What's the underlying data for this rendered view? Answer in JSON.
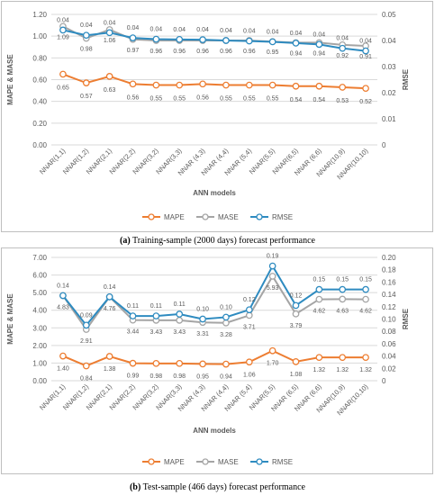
{
  "colors": {
    "mape": "#ED7D31",
    "mase": "#A5A5A5",
    "rmse": "#2E8BC0",
    "grid": "#d9d9d9",
    "text": "#595959"
  },
  "chart_data": [
    {
      "type": "line",
      "panel_label": "(a)",
      "caption": "Training-sample (2000 days) forecast performance",
      "categories": [
        "NNAR(1,1)",
        "NNAR(1,2)",
        "NNAR(2,1)",
        "NNAR(2,2)",
        "NNAR(3,2)",
        "NNAR(3,3)",
        "NNAR (4,3)",
        "NNAR (4,4)",
        "NNAR (5,4)",
        "NNAR(5,5)",
        "NNAR(6,5)",
        "NNAR (6,6)",
        "NNAR(10,9)",
        "NNAR(10,10)"
      ],
      "xlabel": "ANN models",
      "ylabel_left": "MAPE & MASE",
      "ylabel_right": "RMSE",
      "ylim_left": [
        0,
        1.2
      ],
      "yticks_left": [
        "0.00",
        "0.20",
        "0.40",
        "0.60",
        "0.80",
        "1.00",
        "1.20"
      ],
      "ylim_right": [
        0,
        0.05
      ],
      "yticks_right": [
        "0",
        "0.01",
        "0.02",
        "0.03",
        "0.04",
        "0.05"
      ],
      "grid": true,
      "legend_position": "bottom",
      "series": [
        {
          "name": "MAPE",
          "axis": "left",
          "values": [
            0.65,
            0.57,
            0.63,
            0.56,
            0.55,
            0.55,
            0.56,
            0.55,
            0.55,
            0.55,
            0.54,
            0.54,
            0.53,
            0.52
          ],
          "labels": [
            "0.65",
            "0.57",
            "0.63",
            "0.56",
            "0.55",
            "0.55",
            "0.56",
            "0.55",
            "0.55",
            "0.55",
            "0.54",
            "0.54",
            "0.53",
            "0.52"
          ]
        },
        {
          "name": "MASE",
          "axis": "left",
          "values": [
            1.09,
            0.98,
            1.06,
            0.97,
            0.96,
            0.96,
            0.96,
            0.96,
            0.96,
            0.95,
            0.94,
            0.94,
            0.92,
            0.91
          ],
          "labels": [
            "1.09",
            "0.98",
            "1.06",
            "0.97",
            "0.96",
            "0.96",
            "0.96",
            "0.96",
            "0.96",
            "0.95",
            "0.94",
            "0.94",
            "0.92",
            "0.91"
          ]
        },
        {
          "name": "RMSE",
          "axis": "right",
          "values": [
            0.044,
            0.042,
            0.043,
            0.041,
            0.0405,
            0.0404,
            0.0403,
            0.04,
            0.0398,
            0.0395,
            0.039,
            0.0385,
            0.037,
            0.036
          ],
          "labels": [
            "0.04",
            "0.04",
            "0.04",
            "0.04",
            "0.04",
            "0.04",
            "0.04",
            "0.04",
            "0.04",
            "0.04",
            "0.04",
            "0.04",
            "0.04",
            "0.04"
          ]
        }
      ]
    },
    {
      "type": "line",
      "panel_label": "(b)",
      "caption": "Test-sample (466 days) forecast performance",
      "categories": [
        "NNAR(1,1)",
        "NNAR(1,2)",
        "NNAR(2,1)",
        "NNAR(2,2)",
        "NNAR(3,2)",
        "NNAR(3,3)",
        "NNAR (4,3)",
        "NNAR (4,4)",
        "NNAR (5,4)",
        "NNAR(5,5)",
        "NNAR (6,5)",
        "NNAR (6,6)",
        "NNAR(10,9)",
        "NNAR(10,10)"
      ],
      "xlabel": "ANN models",
      "ylabel_left": "MAPE & MASE",
      "ylabel_right": "RMSE",
      "ylim_left": [
        0,
        7
      ],
      "yticks_left": [
        "0.00",
        "1.00",
        "2.00",
        "3.00",
        "4.00",
        "5.00",
        "6.00",
        "7.00"
      ],
      "ylim_right": [
        0,
        0.2
      ],
      "yticks_right": [
        "0",
        "0.02",
        "0.04",
        "0.06",
        "0.08",
        "0.10",
        "0.12",
        "0.14",
        "0.16",
        "0.18",
        "0.20"
      ],
      "grid": true,
      "legend_position": "bottom",
      "series": [
        {
          "name": "MAPE",
          "axis": "left",
          "values": [
            1.4,
            0.84,
            1.38,
            0.99,
            0.98,
            0.98,
            0.95,
            0.94,
            1.06,
            1.7,
            1.08,
            1.32,
            1.32,
            1.32
          ],
          "labels": [
            "1.40",
            "0.84",
            "1.38",
            "0.99",
            "0.98",
            "0.98",
            "0.95",
            "0.94",
            "1.06",
            "1.70",
            "1.08",
            "1.32",
            "1.32",
            "1.32"
          ]
        },
        {
          "name": "MASE",
          "axis": "left",
          "values": [
            4.83,
            2.91,
            4.76,
            3.44,
            3.43,
            3.43,
            3.31,
            3.28,
            3.71,
            5.93,
            3.79,
            4.62,
            4.63,
            4.62
          ],
          "labels": [
            "4.83",
            "2.91",
            "4.76",
            "3.44",
            "3.43",
            "3.43",
            "3.31",
            "3.28",
            "3.71",
            "5.93",
            "3.79",
            "4.62",
            "4.63",
            "4.62"
          ]
        },
        {
          "name": "RMSE",
          "axis": "right",
          "values": [
            0.138,
            0.09,
            0.136,
            0.105,
            0.105,
            0.108,
            0.1,
            0.103,
            0.115,
            0.186,
            0.122,
            0.148,
            0.148,
            0.148
          ],
          "labels": [
            "0.14",
            "0.09",
            "0.14",
            "0.11",
            "0.11",
            "0.11",
            "0.10",
            "0.10",
            "0.12",
            "0.19",
            "0.12",
            "0.15",
            "0.15",
            "0.15"
          ]
        }
      ]
    }
  ]
}
